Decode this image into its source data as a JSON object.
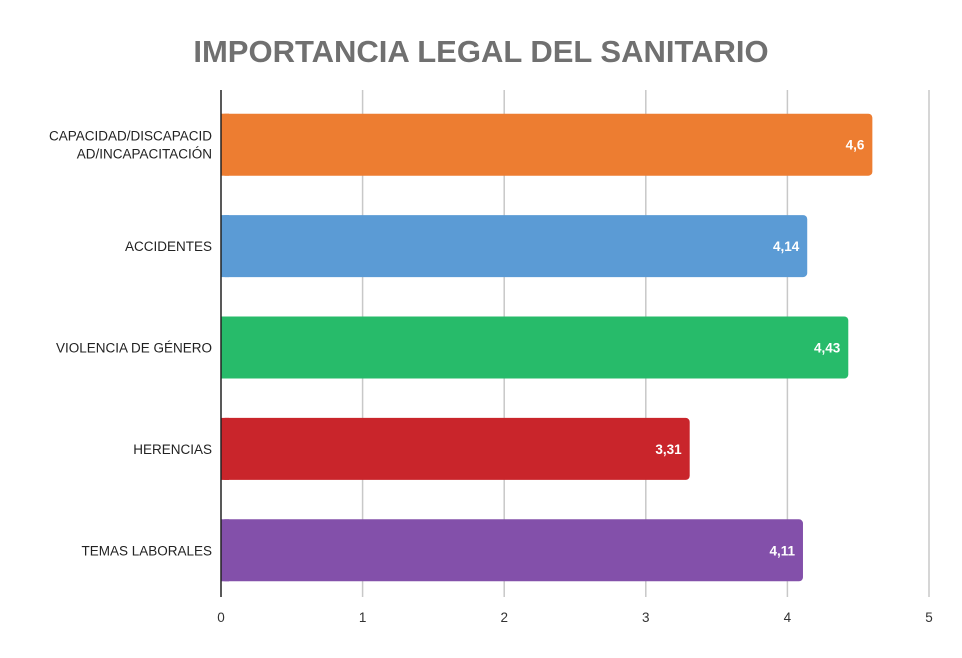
{
  "chart_data": {
    "type": "bar",
    "orientation": "horizontal",
    "title": "IMPORTANCIA LEGAL DEL SANITARIO",
    "xlabel": "",
    "ylabel": "",
    "categories": [
      [
        "CAPACIDAD/DISCAPACID",
        "AD/INCAPACITACIÓN"
      ],
      [
        "ACCIDENTES"
      ],
      [
        "VIOLENCIA DE GÉNERO"
      ],
      [
        "HERENCIAS"
      ],
      [
        "TEMAS LABORALES"
      ]
    ],
    "values": [
      4.6,
      4.14,
      4.43,
      3.31,
      4.11
    ],
    "data_labels": [
      "4,6",
      "4,14",
      "4,43",
      "3,31",
      "4,11"
    ],
    "colors": [
      "#ED7D31",
      "#5B9BD5",
      "#27BB6A",
      "#C9252B",
      "#8350AA"
    ],
    "xlim": [
      0,
      5
    ],
    "xticks": [
      "0",
      "1",
      "2",
      "3",
      "4",
      "5"
    ],
    "grid": true,
    "legend": "none"
  }
}
